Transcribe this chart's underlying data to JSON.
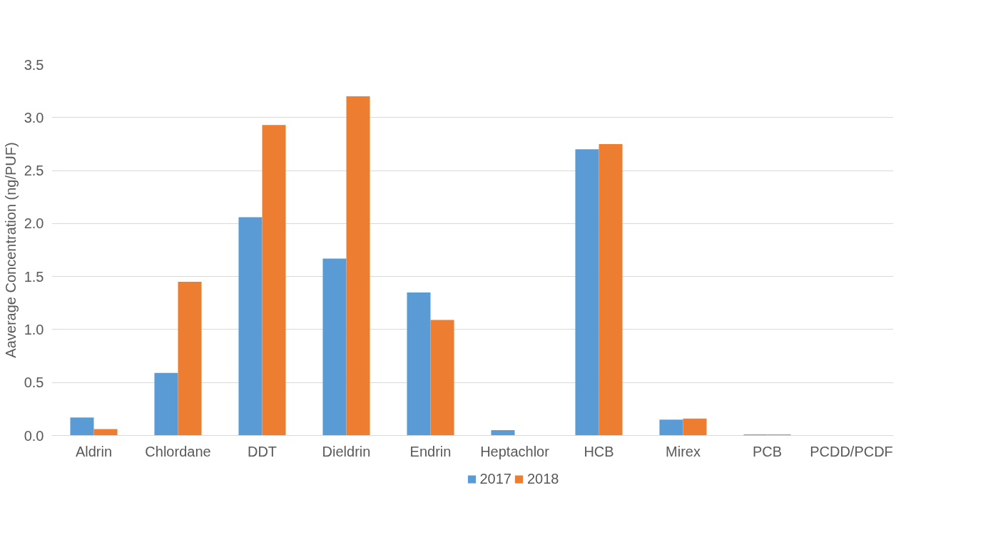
{
  "chart_data": {
    "type": "bar",
    "ylabel": "Aaverage Concentration (ng/PUF)",
    "categories": [
      "Aldrin",
      "Chlordane",
      "DDT",
      "Dieldrin",
      "Endrin",
      "Heptachlor",
      "HCB",
      "Mirex",
      "PCB",
      "PCDD/PCDF"
    ],
    "series": [
      {
        "name": "2017",
        "color": "#5b9bd5",
        "values": [
          0.17,
          0.59,
          2.06,
          1.67,
          1.35,
          0.05,
          2.7,
          0.15,
          0.01,
          0
        ]
      },
      {
        "name": "2018",
        "color": "#ed7d31",
        "values": [
          0.06,
          1.45,
          2.93,
          3.2,
          1.09,
          0,
          2.75,
          0.16,
          0.01,
          0
        ]
      }
    ],
    "ylim": [
      0,
      3.5
    ],
    "yticks": [
      {
        "value": 0,
        "label": "0.0"
      },
      {
        "value": 0.5,
        "label": "0.5"
      },
      {
        "value": 1,
        "label": "1.0"
      },
      {
        "value": 1.5,
        "label": "1.5"
      },
      {
        "value": 2,
        "label": "2.0"
      },
      {
        "value": 2.5,
        "label": "2.5"
      },
      {
        "value": 3,
        "label": "3.0"
      },
      {
        "value": 3.5,
        "label": "3.5"
      }
    ],
    "grid": "y",
    "legend": "bottom"
  }
}
